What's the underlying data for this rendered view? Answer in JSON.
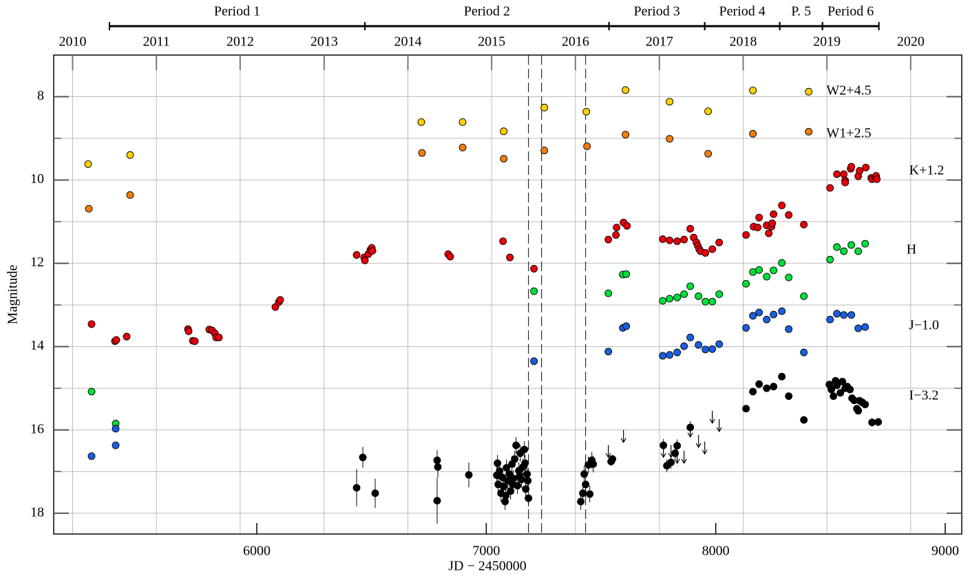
{
  "chart_data": {
    "type": "scatter",
    "x_label": "JD − 2450000",
    "y_label": "Magnitude",
    "xlim": [
      5115,
      9072
    ],
    "ylim": [
      18.5,
      7.0
    ],
    "xticks": [
      6000,
      7000,
      8000,
      9000
    ],
    "yticks": [
      8,
      10,
      12,
      14,
      16,
      18
    ],
    "yminorticks": [
      9,
      11,
      13,
      15,
      17
    ],
    "grid": true,
    "top_axis_ticks": [
      {
        "value": 5197.5,
        "label": "2010"
      },
      {
        "value": 5562.5,
        "label": "2011"
      },
      {
        "value": 5927.5,
        "label": "2012"
      },
      {
        "value": 6293.5,
        "label": "2013"
      },
      {
        "value": 6658.5,
        "label": "2014"
      },
      {
        "value": 7023.5,
        "label": "2015"
      },
      {
        "value": 7388.5,
        "label": "2016"
      },
      {
        "value": 7754.5,
        "label": "2017"
      },
      {
        "value": 8119.5,
        "label": "2018"
      },
      {
        "value": 8484.5,
        "label": "2019"
      },
      {
        "value": 8849.5,
        "label": "2020"
      }
    ],
    "periods": [
      {
        "label": "Period 1",
        "start": 5358,
        "end": 6471
      },
      {
        "label": "Period 2",
        "start": 6471,
        "end": 7535
      },
      {
        "label": "Period 3",
        "start": 7535,
        "end": 7952
      },
      {
        "label": "Period 4",
        "start": 7952,
        "end": 8279
      },
      {
        "label": "P. 5",
        "start": 8279,
        "end": 8465
      },
      {
        "label": "Period 6",
        "start": 8465,
        "end": 8711
      }
    ],
    "dashed_lines": [
      7184,
      7241,
      7433
    ],
    "series": [
      {
        "name": "W2+4.5",
        "color": "#ffd000",
        "label_color": "#ff8c00",
        "x": [
          5265,
          5448,
          6717,
          6897,
          7076,
          7253,
          7436,
          7607,
          7799,
          7967,
          8162,
          8405
        ],
        "values": [
          9.62,
          9.4,
          8.61,
          8.61,
          8.83,
          8.26,
          8.36,
          7.84,
          8.12,
          8.35,
          7.85,
          7.88
        ]
      },
      {
        "name": "W1+2.5",
        "color": "#f07d10",
        "label_color": "#ff6600",
        "x": [
          5268,
          5448,
          6720,
          6897,
          7076,
          7253,
          7439,
          7607,
          7799,
          7967,
          8162,
          8405
        ],
        "values": [
          10.69,
          10.36,
          9.35,
          9.22,
          9.49,
          9.29,
          9.19,
          8.91,
          9.01,
          9.37,
          8.89,
          8.84
        ]
      },
      {
        "name": "K+1.2",
        "color": "#e8000b",
        "label_color": "#e00000",
        "x": [
          5280,
          5382,
          5388,
          5433,
          5700,
          5703,
          5721,
          5730,
          5793,
          5805,
          5817,
          5823,
          5835,
          6081,
          6096,
          6102,
          6435,
          6468,
          6471,
          6486,
          6495,
          6501,
          6504,
          6834,
          6843,
          7073,
          7103,
          7208,
          7532,
          7565,
          7568,
          7598,
          7613,
          7769,
          7799,
          7832,
          7862,
          7889,
          7904,
          7916,
          7922,
          7928,
          7934,
          7955,
          7985,
          8015,
          8132,
          8165,
          8183,
          8189,
          8222,
          8231,
          8243,
          8246,
          8252,
          8288,
          8318,
          8384,
          8498,
          8528,
          8558,
          8564,
          8564,
          8588,
          8591,
          8621,
          8627,
          8654,
          8678,
          8681,
          8696,
          8699,
          8702
        ],
        "values": [
          13.46,
          13.87,
          13.84,
          13.76,
          13.58,
          13.63,
          13.86,
          13.87,
          13.59,
          13.61,
          13.68,
          13.78,
          13.78,
          13.05,
          12.93,
          12.88,
          11.8,
          11.86,
          11.93,
          11.78,
          11.68,
          11.63,
          11.7,
          11.78,
          11.84,
          11.47,
          11.86,
          12.13,
          11.43,
          11.32,
          11.14,
          11.02,
          11.1,
          11.42,
          11.45,
          11.47,
          11.43,
          11.17,
          11.38,
          11.5,
          11.58,
          11.66,
          11.71,
          11.75,
          11.66,
          11.5,
          11.32,
          11.12,
          11.14,
          10.9,
          11.09,
          11.28,
          11.12,
          11.04,
          10.82,
          10.61,
          10.84,
          11.07,
          10.19,
          9.86,
          9.86,
          10.01,
          10.06,
          9.73,
          9.68,
          9.91,
          9.78,
          9.7,
          9.95,
          9.98,
          9.93,
          9.9,
          9.98
        ]
      },
      {
        "name": "H",
        "color": "#00e03a",
        "label_color": "#00e03a",
        "x": [
          5280,
          5385,
          7208,
          7532,
          7595,
          7610,
          7769,
          7799,
          7832,
          7862,
          7889,
          7925,
          7955,
          7985,
          8015,
          8132,
          8162,
          8189,
          8222,
          8252,
          8288,
          8318,
          8384,
          8498,
          8528,
          8558,
          8591,
          8621,
          8651
        ],
        "values": [
          15.08,
          15.85,
          12.67,
          12.72,
          12.27,
          12.26,
          12.9,
          12.85,
          12.82,
          12.74,
          12.55,
          12.79,
          12.92,
          12.92,
          12.74,
          12.49,
          12.21,
          12.16,
          12.32,
          12.17,
          11.99,
          12.34,
          12.79,
          11.91,
          11.61,
          11.71,
          11.56,
          11.71,
          11.53
        ]
      },
      {
        "name": "J−1.0",
        "color": "#1a5fe0",
        "label_color": "#1a5fe0",
        "x": [
          5280,
          5385,
          5385,
          7208,
          7532,
          7595,
          7610,
          7769,
          7799,
          7832,
          7862,
          7889,
          7925,
          7955,
          7985,
          8015,
          8132,
          8162,
          8189,
          8222,
          8252,
          8288,
          8318,
          8384,
          8498,
          8528,
          8558,
          8591,
          8621,
          8651
        ],
        "values": [
          16.63,
          16.37,
          15.97,
          14.35,
          14.12,
          13.55,
          13.51,
          14.22,
          14.2,
          14.14,
          13.99,
          13.78,
          13.96,
          14.07,
          14.06,
          13.94,
          13.55,
          13.26,
          13.18,
          13.35,
          13.23,
          13.15,
          13.58,
          14.14,
          13.35,
          13.21,
          13.24,
          13.24,
          13.56,
          13.53
        ]
      },
      {
        "name": "I−3.2",
        "color": "#000000",
        "label_color": "#000000",
        "x": [
          6435,
          6462,
          6516,
          6786,
          6789,
          6786,
          6924,
          7046,
          7052,
          7058,
          7064,
          7070,
          7076,
          7082,
          7088,
          7094,
          7100,
          7106,
          7112,
          7118,
          7124,
          7130,
          7136,
          7142,
          7148,
          7154,
          7160,
          7166,
          7172,
          7178,
          7184,
          7049,
          7085,
          7115,
          7145,
          7169,
          7181,
          7412,
          7421,
          7427,
          7433,
          7445,
          7451,
          7460,
          7466,
          7544,
          7550,
          7772,
          7787,
          7805,
          7823,
          7832,
          7889,
          8132,
          8162,
          8189,
          8222,
          8252,
          8288,
          8318,
          8384,
          8495,
          8504,
          8513,
          8522,
          8528,
          8543,
          8552,
          8564,
          8573,
          8585,
          8594,
          8603,
          8615,
          8621,
          8627,
          8639,
          8651,
          8681,
          8708
        ],
        "values": [
          17.39,
          16.66,
          17.52,
          16.73,
          16.89,
          17.7,
          17.08,
          17.09,
          17.31,
          16.99,
          17.52,
          17.14,
          17.36,
          17.72,
          16.91,
          17.22,
          17.06,
          17.47,
          16.82,
          17.17,
          16.7,
          16.37,
          17.34,
          16.98,
          16.56,
          17.19,
          16.89,
          16.47,
          17.42,
          17.06,
          17.64,
          16.8,
          17.58,
          17.31,
          17.11,
          16.8,
          17.22,
          17.72,
          17.52,
          17.06,
          17.31,
          16.84,
          17.54,
          16.73,
          16.82,
          16.76,
          16.7,
          16.37,
          16.86,
          16.78,
          16.56,
          16.38,
          15.94,
          15.49,
          15.08,
          14.9,
          15.0,
          14.96,
          14.72,
          15.19,
          15.76,
          14.91,
          15.03,
          15.19,
          14.82,
          14.93,
          15.11,
          14.84,
          15.0,
          14.96,
          15.03,
          15.24,
          15.29,
          15.49,
          15.54,
          15.3,
          15.34,
          15.39,
          15.82,
          15.81
        ],
        "errors": [
          0.45,
          0.25,
          0.35,
          0.25,
          0.25,
          0.55,
          0.3,
          0.2,
          0.2,
          0.2,
          0.2,
          0.2,
          0.2,
          0.2,
          0.2,
          0.2,
          0.2,
          0.2,
          0.2,
          0.2,
          0.2,
          0.2,
          0.2,
          0.2,
          0.2,
          0.2,
          0.2,
          0.2,
          0.2,
          0.2,
          0.2,
          0.2,
          0.2,
          0.2,
          0.2,
          0.2,
          0.2,
          0.2,
          0.2,
          0.2,
          0.2,
          0.2,
          0.2,
          0.2,
          0.2,
          0.1,
          0.1,
          0.15,
          0.15,
          0.15,
          0.15,
          0.15,
          0.15,
          null,
          null,
          null,
          null,
          null,
          null,
          null,
          null,
          null,
          null,
          null,
          null,
          null,
          null,
          null,
          null,
          null,
          null,
          null,
          null,
          null,
          null,
          null,
          null,
          null,
          0.1,
          0.1
        ]
      }
    ],
    "upper_limits": {
      "color": "#000000",
      "x": [
        7532,
        7598,
        7772,
        7805,
        7832,
        7862,
        7889,
        7925,
        7952,
        7985,
        8015
      ],
      "values": [
        16.56,
        16.2,
        16.56,
        16.56,
        16.7,
        16.7,
        16.07,
        16.32,
        16.48,
        15.74,
        15.94
      ]
    }
  }
}
